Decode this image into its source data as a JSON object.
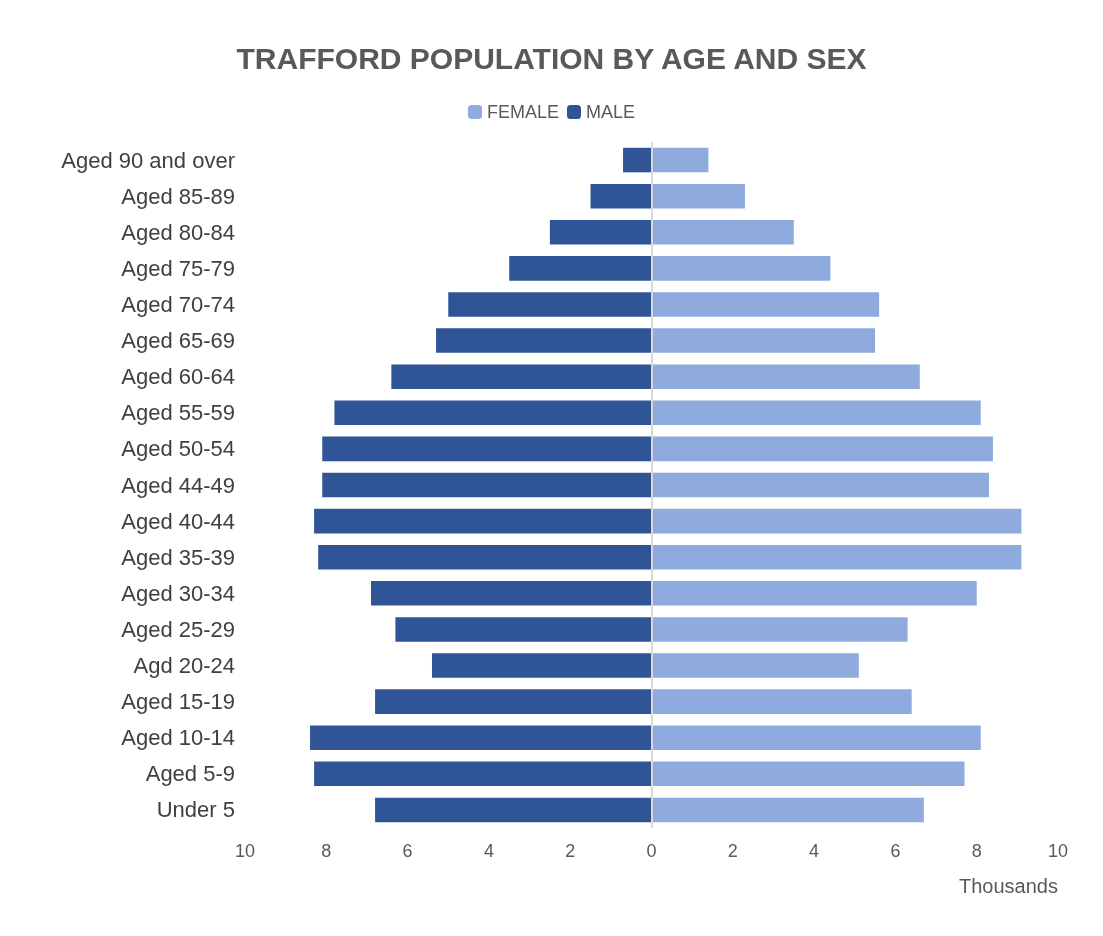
{
  "chart_data": {
    "type": "bar",
    "orientation": "horizontal",
    "stacked": true,
    "title": "TRAFFORD POPULATION BY AGE AND SEX",
    "xlabel": "Thousands",
    "legend": "top",
    "grid": false,
    "categories": [
      "Aged 90 and over",
      "Aged 85-89",
      "Aged 80-84",
      "Aged 75-79",
      "Aged 70-74",
      "Aged 65-69",
      "Aged 60-64",
      "Aged 55-59",
      "Aged 50-54",
      "Aged 44-49",
      "Aged 40-44",
      "Aged 35-39",
      "Aged 30-34",
      "Aged 25-29",
      "Agd 20-24",
      "Aged 15-19",
      "Aged 10-14",
      "Aged 5-9",
      "Under 5"
    ],
    "series": [
      {
        "name": "FEMALE",
        "color": "#8faadc",
        "values": [
          1.4,
          2.3,
          3.5,
          4.4,
          5.6,
          5.5,
          6.6,
          8.1,
          8.4,
          8.3,
          9.1,
          9.1,
          8.0,
          6.3,
          5.1,
          6.4,
          8.1,
          7.7,
          6.7
        ]
      },
      {
        "name": "MALE",
        "color": "#2f5597",
        "values": [
          -0.7,
          -1.5,
          -2.5,
          -3.5,
          -5.0,
          -5.3,
          -6.4,
          -7.8,
          -8.1,
          -8.1,
          -8.3,
          -8.2,
          -6.9,
          -6.3,
          -5.4,
          -6.8,
          -8.4,
          -8.3,
          -6.8
        ]
      }
    ],
    "ref_lines": [
      {
        "axis": "x",
        "value": 0,
        "color": "#d9d9d9"
      }
    ],
    "xlim": [
      -10,
      10
    ],
    "xticks": [
      {
        "value": -10,
        "label": "10"
      },
      {
        "value": -8,
        "label": "8"
      },
      {
        "value": -6,
        "label": "6"
      },
      {
        "value": -4,
        "label": "4"
      },
      {
        "value": -2,
        "label": "2"
      },
      0,
      2,
      4,
      6,
      8,
      10
    ]
  }
}
